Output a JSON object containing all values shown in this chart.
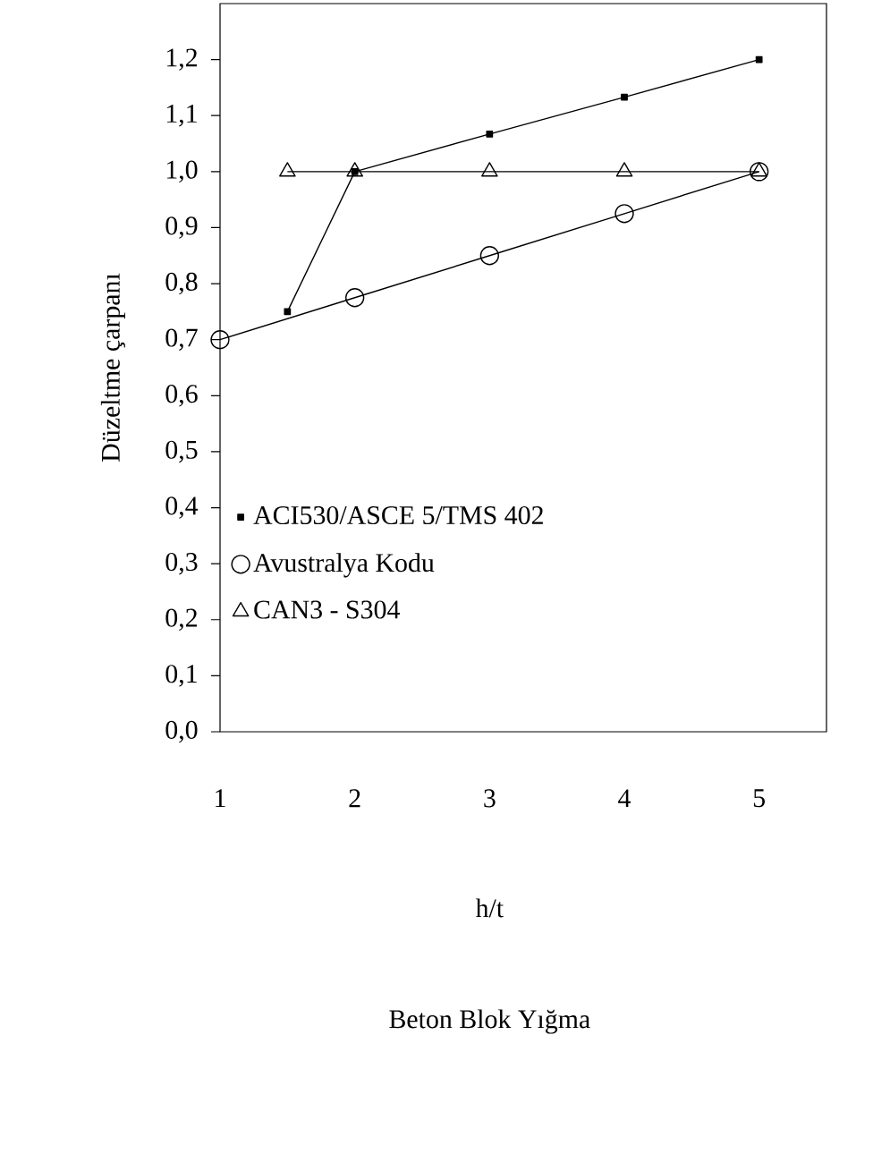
{
  "chart_data": {
    "type": "line",
    "xlabel": "h/t",
    "ylabel": "Düzeltme çarpanı",
    "annotations": [
      "Beton Blok Yığma"
    ],
    "xlim": [
      1,
      5.5
    ],
    "xticks": [
      1,
      2,
      3,
      4,
      5
    ],
    "ylim": [
      0,
      1.3
    ],
    "yticks": [
      {
        "value": 0,
        "label": "0,0"
      },
      {
        "value": 0.1,
        "label": "0,1"
      },
      {
        "value": 0.2,
        "label": "0,2"
      },
      {
        "value": 0.3,
        "label": "0,3"
      },
      {
        "value": 0.4,
        "label": "0,4"
      },
      {
        "value": 0.5,
        "label": "0,5"
      },
      {
        "value": 0.6,
        "label": "0,6"
      },
      {
        "value": 0.7,
        "label": "0,7"
      },
      {
        "value": 0.8,
        "label": "0,8"
      },
      {
        "value": 0.9,
        "label": "0,9"
      },
      {
        "value": 1.0,
        "label": "1,0"
      },
      {
        "value": 1.1,
        "label": "1,1"
      },
      {
        "value": 1.2,
        "label": "1,2"
      }
    ],
    "legend": "left",
    "grid": false,
    "series": [
      {
        "name": "ACI530/ASCE 5/TMS 402",
        "color": "#000000",
        "marker": "square",
        "x": [
          1.5,
          2,
          3,
          4,
          5
        ],
        "values": [
          0.75,
          1.0,
          1.067,
          1.133,
          1.2
        ]
      },
      {
        "name": "Avustralya Kodu",
        "color": "#000000",
        "marker": "circle",
        "x": [
          1,
          2,
          3,
          4,
          5
        ],
        "values": [
          0.7,
          0.775,
          0.85,
          0.925,
          1.0
        ]
      },
      {
        "name": "CAN3 - S304",
        "color": "#000000",
        "marker": "triangle",
        "x": [
          1.5,
          2,
          3,
          4,
          5
        ],
        "values": [
          1.0,
          1.0,
          1.0,
          1.0,
          1.0
        ]
      }
    ]
  }
}
